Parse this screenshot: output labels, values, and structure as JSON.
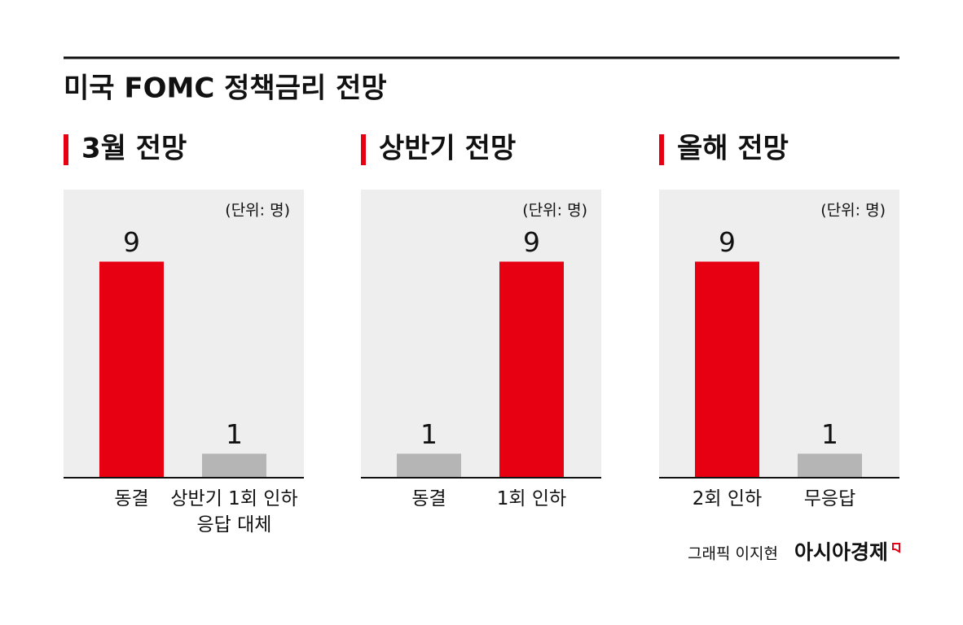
{
  "title": "미국 FOMC 정책금리 전망",
  "chart_data": [
    {
      "type": "bar",
      "title": "3월 전망",
      "unit": "(단위: 명)",
      "categories": [
        "동결",
        "상반기 1회 인하 응답 대체"
      ],
      "values": [
        9,
        1
      ],
      "colors": [
        "#e60012",
        "#b5b5b5"
      ],
      "ylim": [
        0,
        12
      ]
    },
    {
      "type": "bar",
      "title": "상반기 전망",
      "unit": "(단위: 명)",
      "categories": [
        "동결",
        "1회 인하"
      ],
      "values": [
        1,
        9
      ],
      "colors": [
        "#b5b5b5",
        "#e60012"
      ],
      "ylim": [
        0,
        12
      ]
    },
    {
      "type": "bar",
      "title": "올해 전망",
      "unit": "(단위: 명)",
      "categories": [
        "2회 인하",
        "무응답"
      ],
      "values": [
        9,
        1
      ],
      "colors": [
        "#e60012",
        "#b5b5b5"
      ],
      "ylim": [
        0,
        12
      ]
    }
  ],
  "footer": {
    "credit": "그래픽 이지현",
    "logo": "아시아경제"
  }
}
